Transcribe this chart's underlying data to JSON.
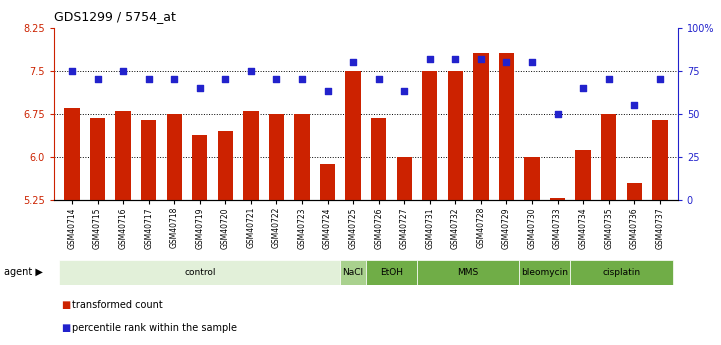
{
  "title": "GDS1299 / 5754_at",
  "categories": [
    "GSM40714",
    "GSM40715",
    "GSM40716",
    "GSM40717",
    "GSM40718",
    "GSM40719",
    "GSM40720",
    "GSM40721",
    "GSM40722",
    "GSM40723",
    "GSM40724",
    "GSM40725",
    "GSM40726",
    "GSM40727",
    "GSM40731",
    "GSM40732",
    "GSM40728",
    "GSM40729",
    "GSM40730",
    "GSM40733",
    "GSM40734",
    "GSM40735",
    "GSM40736",
    "GSM40737"
  ],
  "bar_values": [
    6.85,
    6.68,
    6.8,
    6.65,
    6.75,
    6.38,
    6.45,
    6.8,
    6.75,
    6.75,
    5.88,
    7.5,
    6.68,
    6.0,
    7.5,
    7.5,
    7.8,
    7.8,
    6.0,
    5.28,
    6.12,
    6.75,
    5.55,
    6.65
  ],
  "dot_values": [
    75,
    70,
    75,
    70,
    70,
    65,
    70,
    75,
    70,
    70,
    63,
    80,
    70,
    63,
    82,
    82,
    82,
    80,
    80,
    50,
    65,
    70,
    55,
    70
  ],
  "ylim_left": [
    5.25,
    8.25
  ],
  "ylim_right": [
    0,
    100
  ],
  "yticks_left": [
    5.25,
    6.0,
    6.75,
    7.5,
    8.25
  ],
  "yticks_right": [
    0,
    25,
    50,
    75,
    100
  ],
  "hlines": [
    6.0,
    6.75,
    7.5
  ],
  "bar_color": "#CC2200",
  "dot_color": "#2222CC",
  "background_color": "#ffffff",
  "groups": [
    {
      "label": "control",
      "start": 0,
      "end": 10,
      "color": "#e2f0d9"
    },
    {
      "label": "NaCl",
      "start": 11,
      "end": 11,
      "color": "#a9d18e"
    },
    {
      "label": "EtOH",
      "start": 12,
      "end": 13,
      "color": "#70ad47"
    },
    {
      "label": "MMS",
      "start": 14,
      "end": 17,
      "color": "#70ad47"
    },
    {
      "label": "bleomycin",
      "start": 18,
      "end": 19,
      "color": "#70ad47"
    },
    {
      "label": "cisplatin",
      "start": 20,
      "end": 23,
      "color": "#70ad47"
    }
  ]
}
